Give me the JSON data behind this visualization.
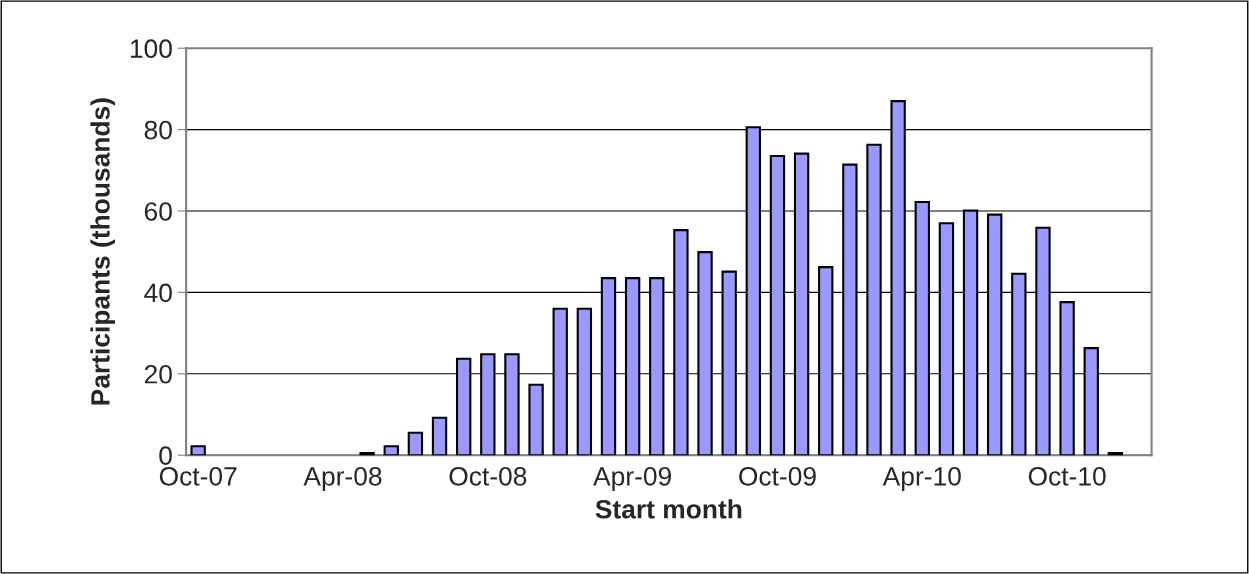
{
  "chart_data": {
    "type": "bar",
    "xlabel": "Start month",
    "ylabel": "Participants (thousands)",
    "categories": [
      "Oct-07",
      null,
      null,
      null,
      null,
      null,
      "Apr-08",
      null,
      null,
      null,
      null,
      null,
      "Oct-08",
      null,
      null,
      null,
      null,
      null,
      "Apr-09",
      null,
      null,
      null,
      null,
      null,
      "Oct-09",
      null,
      null,
      null,
      null,
      null,
      "Apr-10",
      null,
      null,
      null,
      null,
      null,
      "Oct-10",
      null,
      null,
      null
    ],
    "values": [
      2.2,
      null,
      null,
      null,
      null,
      null,
      null,
      0.5,
      2.2,
      5.5,
      9.2,
      23.7,
      24.8,
      24.8,
      17.3,
      36,
      36,
      43.5,
      43.5,
      43.5,
      55.3,
      49.9,
      45.1,
      80.6,
      73.5,
      74.1,
      46.2,
      71.4,
      76.3,
      87,
      62.2,
      57,
      60.1,
      59.1,
      44.6,
      55.9,
      37.6,
      26.3,
      0.5,
      null
    ],
    "color": "#9999ff",
    "ylim": [
      0,
      100
    ],
    "yticks": [
      0,
      20,
      40,
      60,
      80,
      100
    ],
    "grid": "y",
    "legend": false
  }
}
